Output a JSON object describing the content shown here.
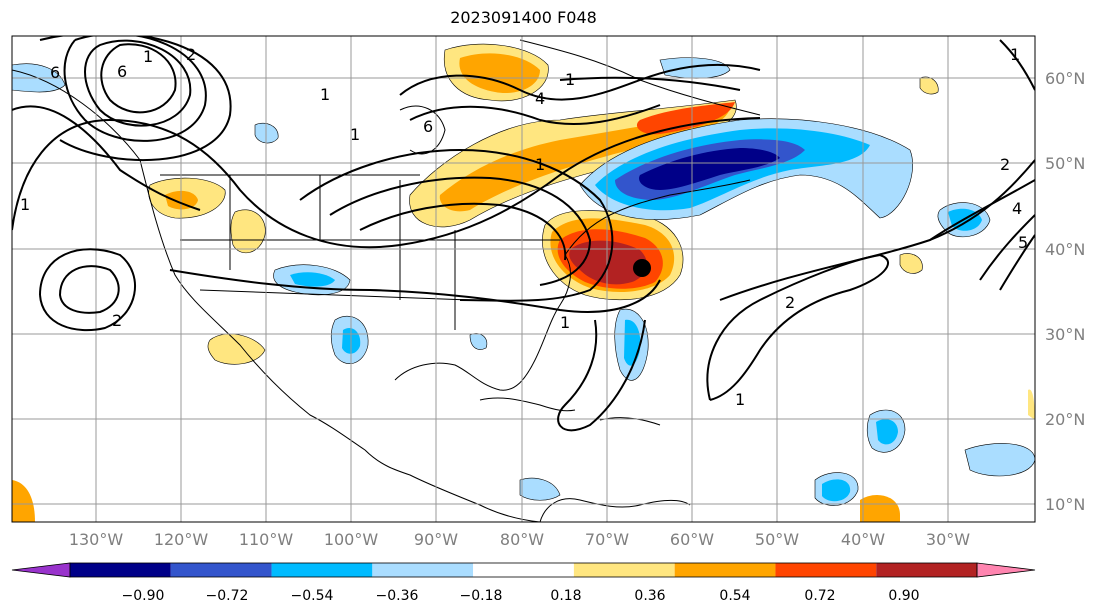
{
  "title": "2023091400 F048",
  "map": {
    "lat_labels": [
      "60°N",
      "50°N",
      "40°N",
      "30°N",
      "20°N",
      "10°N"
    ],
    "lon_labels": [
      "130°W",
      "120°W",
      "110°W",
      "100°W",
      "90°W",
      "80°W",
      "70°W",
      "60°W",
      "50°W",
      "40°W",
      "30°W"
    ],
    "contour_labels": [
      "6",
      "6",
      "6",
      "4",
      "2",
      "1",
      "1",
      "1",
      "1",
      "1",
      "2",
      "2",
      "2",
      "4",
      "5",
      "1",
      "1",
      "1",
      "1"
    ],
    "storm_marker": {
      "lon": -65.5,
      "lat": 37.5
    }
  },
  "colorbar": {
    "ticks": [
      "−0.90",
      "−0.72",
      "−0.54",
      "−0.36",
      "−0.18",
      "0.18",
      "0.36",
      "0.54",
      "0.72",
      "0.90"
    ],
    "colors": [
      "#9933cc",
      "#000088",
      "#3355cc",
      "#00bbff",
      "#aaddff",
      "#ffffff",
      "#ffe680",
      "#ffa500",
      "#ff4500",
      "#b22222",
      "#ff85b0"
    ]
  }
}
